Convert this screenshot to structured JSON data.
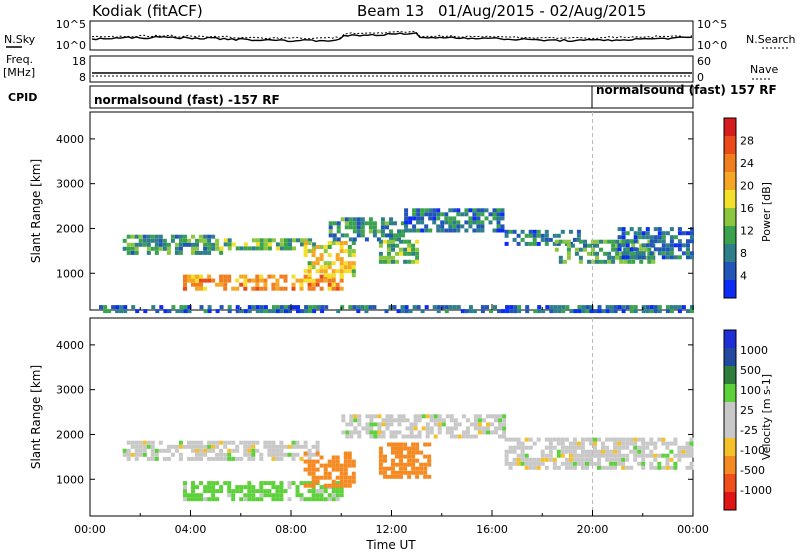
{
  "header": {
    "radar": "Kodiak  (fitACF)",
    "beam": "Beam 13",
    "dates": "01/Aug/2015 - 02/Aug/2015"
  },
  "noise_panel": {
    "left_label": "N.Sky",
    "right_label": "N.Search",
    "left_ticks": [
      "10^5",
      "10^0"
    ],
    "right_ticks": [
      "10^5",
      "10^0"
    ]
  },
  "freq_panel": {
    "left_label_1": "Freq.",
    "left_label_2": "[MHz]",
    "right_label": "Nave",
    "left_ticks": [
      "18",
      "8"
    ],
    "right_ticks": [
      "60",
      "0"
    ]
  },
  "cpid_panel": {
    "label": "CPID",
    "modes": [
      {
        "text": "normalsound (fast) -157 RF",
        "start_hour": 0
      },
      {
        "text": "normalsound (fast) 157 RF",
        "start_hour": 20
      }
    ]
  },
  "colors": {
    "power": [
      "#0b2cf5",
      "#2255b8",
      "#2f7f8a",
      "#3aa24d",
      "#8cc63f",
      "#f4e02a",
      "#f5a623",
      "#f07d1e",
      "#ea4a1a",
      "#d61c1c"
    ],
    "velocity": [
      "#e01515",
      "#f04e1a",
      "#f58a23",
      "#f5c12a",
      "#c8c8c8",
      "#c8c8c8",
      "#5dd13a",
      "#2e7d3a",
      "#2348a0",
      "#1e2fd6"
    ]
  },
  "chart_data": [
    {
      "type": "heatmap",
      "title": "Power",
      "xlabel": "",
      "ylabel": "Slant Range [km]",
      "x_range_hours": [
        0,
        24
      ],
      "ylim": [
        180,
        4600
      ],
      "y_ticks": [
        "1000",
        "2000",
        "3000",
        "4000"
      ],
      "colorbar": {
        "label": "Power [dB]",
        "range": [
          0,
          32
        ],
        "ticks": [
          "4",
          "8",
          "12",
          "16",
          "20",
          "24",
          "28"
        ]
      },
      "echo_bands": [
        {
          "t0": 1.3,
          "t1": 5.2,
          "r0": 1500,
          "r1": 1950,
          "mid": 10
        },
        {
          "t0": 5.0,
          "t1": 9.0,
          "r0": 1600,
          "r1": 1850,
          "mid": 12
        },
        {
          "t0": 3.7,
          "t1": 10.0,
          "r0": 700,
          "r1": 1050,
          "mid": 22
        },
        {
          "t0": 8.5,
          "t1": 10.5,
          "r0": 1000,
          "r1": 1800,
          "mid": 17
        },
        {
          "t0": 9.5,
          "t1": 12.5,
          "r0": 1800,
          "r1": 2300,
          "mid": 9
        },
        {
          "t0": 11.5,
          "t1": 13.0,
          "r0": 1300,
          "r1": 1800,
          "mid": 12
        },
        {
          "t0": 12.5,
          "t1": 16.5,
          "r0": 2000,
          "r1": 2500,
          "mid": 7
        },
        {
          "t0": 16.5,
          "t1": 19.5,
          "r0": 1700,
          "r1": 2000,
          "mid": 7
        },
        {
          "t0": 18.5,
          "t1": 22.5,
          "r0": 1300,
          "r1": 1800,
          "mid": 11
        },
        {
          "t0": 21.0,
          "t1": 24.0,
          "r0": 1400,
          "r1": 2100,
          "mid": 6
        },
        {
          "t0": 0.2,
          "t1": 24.0,
          "r0": 200,
          "r1": 350,
          "mid": 6
        }
      ]
    },
    {
      "type": "heatmap",
      "title": "Velocity",
      "xlabel": "Time UT",
      "ylabel": "Slant Range [km]",
      "x_range_hours": [
        0,
        24
      ],
      "x_ticks": [
        "00:00",
        "04:00",
        "08:00",
        "12:00",
        "16:00",
        "20:00",
        "00:00"
      ],
      "ylim": [
        180,
        4600
      ],
      "y_ticks": [
        "1000",
        "2000",
        "3000",
        "4000"
      ],
      "colorbar": {
        "label": "Velocity [m s-1]",
        "ticks": [
          "1000",
          "500",
          "100",
          "25",
          "-25",
          "-100",
          "-500",
          "-1000"
        ]
      },
      "echo_bands": [
        {
          "t0": 1.3,
          "t1": 9.0,
          "r0": 1500,
          "r1": 1950,
          "vel": 0
        },
        {
          "t0": 3.7,
          "t1": 10.0,
          "r0": 600,
          "r1": 1050,
          "vel": 50
        },
        {
          "t0": 8.5,
          "t1": 10.5,
          "r0": 900,
          "r1": 1700,
          "vel": -250
        },
        {
          "t0": 11.5,
          "t1": 13.5,
          "r0": 1100,
          "r1": 1900,
          "vel": -350
        },
        {
          "t0": 10.0,
          "t1": 16.5,
          "r0": 2000,
          "r1": 2500,
          "vel": 0
        },
        {
          "t0": 16.5,
          "t1": 24.0,
          "r0": 1300,
          "r1": 2000,
          "vel": 0
        }
      ]
    }
  ]
}
